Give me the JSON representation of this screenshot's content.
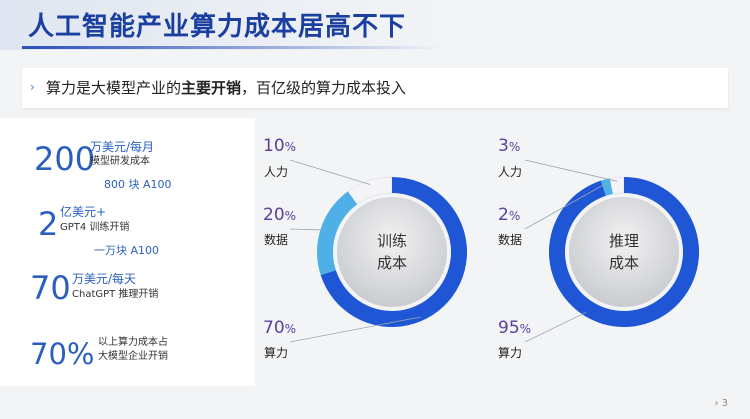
{
  "header": {
    "title": "人工智能产业算力成本居高不下"
  },
  "subtitle": {
    "prefix": "算力是大模型产业的",
    "bold": "主要开销",
    "suffix": "，百亿级的算力成本投入"
  },
  "stats": [
    {
      "number": "200",
      "unit": "万美元/每月",
      "desc": "模型研发成本",
      "sub": "800 块 A100"
    },
    {
      "number": "2",
      "unit": "亿美元+",
      "desc": "GPT4 训练开销",
      "sub": "一万块 A100"
    },
    {
      "number": "70",
      "unit": "万美元/每天",
      "desc": "ChatGPT 推理开销"
    },
    {
      "number": "70%",
      "line1": "以上算力成本占",
      "line2": "大模型企业开销"
    }
  ],
  "donuts": [
    {
      "center_line1": "训练",
      "center_line2": "成本",
      "segments": [
        {
          "label": "人力",
          "value": "10",
          "unit": "%"
        },
        {
          "label": "数据",
          "value": "20",
          "unit": "%"
        },
        {
          "label": "算力",
          "value": "70",
          "unit": "%"
        }
      ]
    },
    {
      "center_line1": "推理",
      "center_line2": "成本",
      "segments": [
        {
          "label": "人力",
          "value": "3",
          "unit": "%"
        },
        {
          "label": "数据",
          "value": "2",
          "unit": "%"
        },
        {
          "label": "算力",
          "value": "95",
          "unit": "%"
        }
      ]
    }
  ],
  "colors": {
    "primary_blue": "#1f56d6",
    "light_blue": "#4fb0e8",
    "white_segment": "#f4f4f6",
    "percent_text": "#5a3f9a"
  },
  "page_number": "3"
}
